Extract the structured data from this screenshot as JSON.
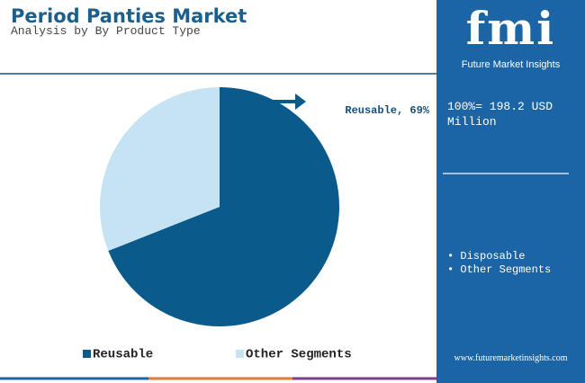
{
  "chart_data": {
    "type": "pie",
    "title": "Period Panties Market",
    "subtitle": "Analysis by By Product Type",
    "categories": [
      "Reusable",
      "Other Segments"
    ],
    "values": [
      69,
      31
    ],
    "value_labels": [
      "Reusable, 69%",
      null
    ],
    "colors": [
      "#0b5a8c",
      "#c5e3f3"
    ]
  },
  "panel": {
    "logo": "fmi",
    "logo_subtitle": "Future Market Insights",
    "total": "100%= 198.2 USD Million",
    "bullets": [
      "Disposable",
      "Other Segments"
    ],
    "website": "www.futuremarketinsights.com"
  }
}
